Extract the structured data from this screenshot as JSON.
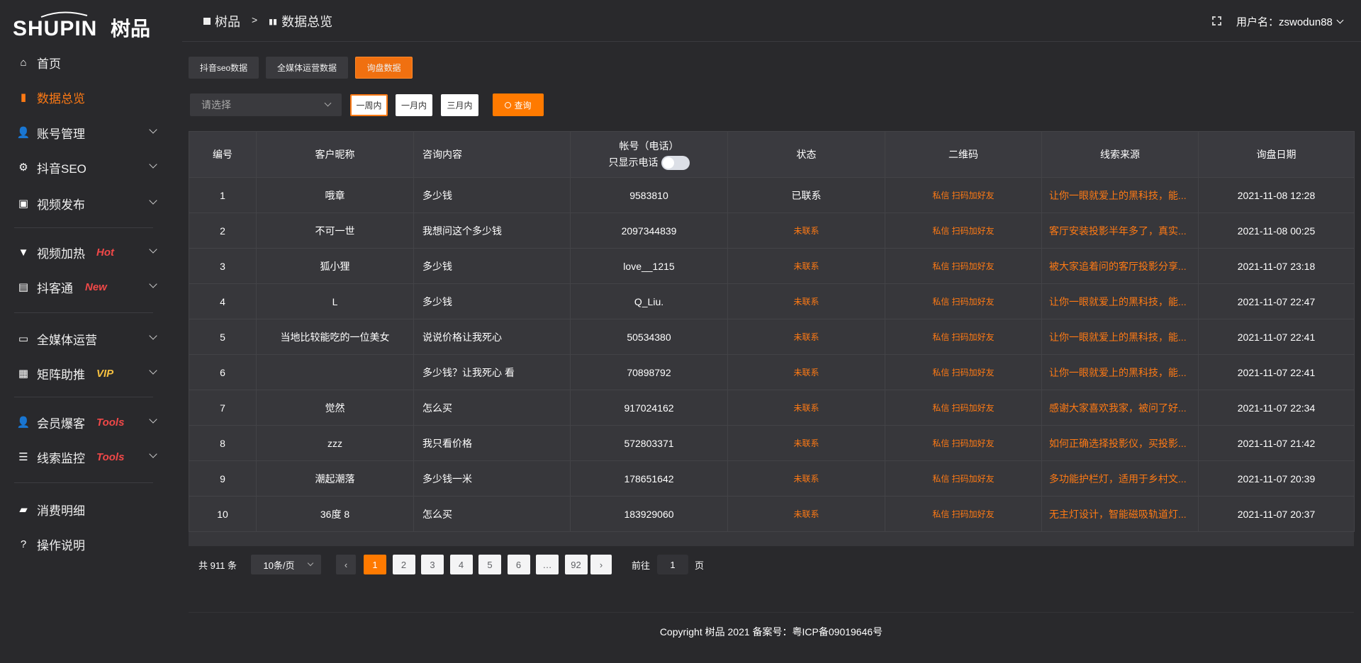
{
  "logo": {
    "text": "SHUPIN",
    "cn": "树品"
  },
  "breadcrumb": [
    {
      "label": "树品",
      "icon": "image-icon"
    },
    {
      "label": "数据总览",
      "icon": "bar-chart-icon"
    }
  ],
  "breadcrumb_sep": ">",
  "user": {
    "label": "用户名：zswodun88"
  },
  "sidebar": {
    "items": [
      {
        "label": "首页",
        "icon": "home-icon"
      },
      {
        "label": "数据总览",
        "icon": "bar-chart-icon",
        "active": true
      },
      {
        "label": "账号管理",
        "icon": "user-icon"
      },
      {
        "label": "抖音SEO",
        "icon": "gear-icon"
      },
      {
        "label": "视频发布",
        "icon": "video-icon"
      },
      {
        "label": "视频加热",
        "icon": "flag-icon",
        "badge": "Hot"
      },
      {
        "label": "抖客通",
        "icon": "chat-icon",
        "badge": "New"
      },
      {
        "label": "全媒体运营",
        "icon": "monitor-icon"
      },
      {
        "label": "矩阵助推",
        "icon": "grid-icon",
        "badge": "VIP"
      },
      {
        "label": "会员爆客",
        "icon": "user-icon",
        "badge": "Tools"
      },
      {
        "label": "线索监控",
        "icon": "sliders-icon",
        "badge": "Tools"
      },
      {
        "label": "消费明细",
        "icon": "wallet-icon"
      },
      {
        "label": "操作说明",
        "icon": "help-icon"
      }
    ]
  },
  "colors": {
    "accent": "#ff7a00",
    "badge_red": "#f04848",
    "badge_vip": "#f5c040"
  },
  "tabs": [
    {
      "label": "抖音seo数据"
    },
    {
      "label": "全媒体运营数据"
    },
    {
      "label": "询盘数据",
      "active": true
    }
  ],
  "filters": {
    "select_placeholder": "请选择",
    "ranges": [
      "一周内",
      "一月内",
      "三月内"
    ],
    "selected_range": "一周内",
    "query": "查询"
  },
  "table": {
    "headers": [
      "编号",
      "客户昵称",
      "咨询内容",
      "帐号（电话）",
      "状态",
      "二维码",
      "线索来源",
      "询盘日期"
    ],
    "phone_toggle_label": "只显示电话",
    "phone_toggle_on": false,
    "rows": [
      [
        "1",
        "哦章",
        "多少钱",
        "9583810",
        "已联系",
        "私信 扫码加好友",
        "让你一眼就爱上的黑科技，能...",
        "2021-11-08 12:28"
      ],
      [
        "2",
        "不可一世",
        "我想问这个多少钱",
        "2097344839",
        "未联系",
        "私信 扫码加好友",
        "客厅安装投影半年多了，真实...",
        "2021-11-08 00:25"
      ],
      [
        "3",
        "狐小狸",
        "多少钱",
        "love__1215",
        "未联系",
        "私信 扫码加好友",
        "被大家追着问的客厅投影分享...",
        "2021-11-07 23:18"
      ],
      [
        "4",
        "L",
        "多少钱",
        "Q_Liu.",
        "未联系",
        "私信 扫码加好友",
        "让你一眼就爱上的黑科技，能...",
        "2021-11-07 22:47"
      ],
      [
        "5",
        "当地比较能吃的一位美女",
        "说说价格让我死心",
        "50534380",
        "未联系",
        "私信 扫码加好友",
        "让你一眼就爱上的黑科技，能...",
        "2021-11-07 22:41"
      ],
      [
        "6",
        "",
        "多少钱？让我死心 看",
        "70898792",
        "未联系",
        "私信 扫码加好友",
        "让你一眼就爱上的黑科技，能...",
        "2021-11-07 22:41"
      ],
      [
        "7",
        "觉然",
        "怎么买",
        "917024162",
        "未联系",
        "私信 扫码加好友",
        "感谢大家喜欢我家，被问了好...",
        "2021-11-07 22:34"
      ],
      [
        "8",
        "zzz",
        "我只看价格",
        "572803371",
        "未联系",
        "私信 扫码加好友",
        "如何正确选择投影仪，买投影...",
        "2021-11-07 21:42"
      ],
      [
        "9",
        "潮起潮落",
        "多少钱一米",
        "178651642",
        "未联系",
        "私信 扫码加好友",
        "多功能护栏灯，适用于乡村文...",
        "2021-11-07 20:39"
      ],
      [
        "10",
        "36度 8",
        "怎么买",
        "183929060",
        "未联系",
        "私信 扫码加好友",
        "无主灯设计，智能磁吸轨道灯...",
        "2021-11-07 20:37"
      ]
    ]
  },
  "pagination": {
    "total": "共 911 条",
    "page_size": "10条/页",
    "pages": [
      "1",
      "2",
      "3",
      "4",
      "5",
      "6",
      "…",
      "92"
    ],
    "current": "1",
    "goto_label": "前往",
    "goto_value": "1",
    "page_suffix": "页"
  },
  "footer": {
    "copyright": "Copyright 树品 2021 备案号：粤ICP备09019646号"
  }
}
